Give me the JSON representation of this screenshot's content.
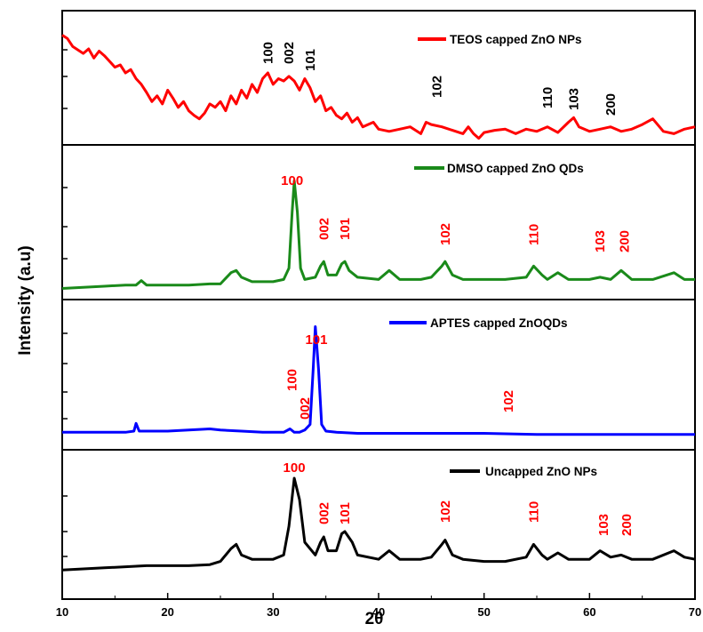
{
  "chart_data": {
    "type": "line",
    "xlabel": "2θ",
    "ylabel": "Intensity (a.u)",
    "xlim": [
      10,
      70
    ],
    "xticks": [
      10,
      20,
      30,
      40,
      50,
      60,
      70
    ],
    "colors": {
      "frame": "#000000",
      "teos": "#ff0000",
      "dmso": "#1a8a1a",
      "aptes": "#0000ff",
      "uncapped": "#000000",
      "red_label": "#ff0000"
    },
    "panels": [
      {
        "id": "teos",
        "legend": "TEOS capped ZnO NPs",
        "color": "#ff0000",
        "label_color": "#000000",
        "ylim": [
          0,
          100
        ],
        "x": [
          10,
          10.5,
          11,
          12,
          12.5,
          13,
          13.5,
          14,
          14.5,
          15,
          15.5,
          16,
          16.5,
          17,
          17.5,
          18,
          18.5,
          19,
          19.5,
          20,
          20.5,
          21,
          21.5,
          22,
          22.5,
          23,
          23.5,
          24,
          24.5,
          25,
          25.5,
          26,
          26.5,
          27,
          27.5,
          28,
          28.5,
          29,
          29.5,
          30,
          30.5,
          31,
          31.5,
          32,
          32.5,
          33,
          33.5,
          34,
          34.5,
          35,
          35.5,
          36,
          36.5,
          37,
          37.5,
          38,
          38.5,
          39,
          39.5,
          40,
          41,
          42,
          43,
          44,
          44.5,
          45,
          46,
          47,
          48,
          48.5,
          49,
          49.5,
          50,
          51,
          52,
          53,
          54,
          55,
          56,
          57,
          58,
          58.5,
          59,
          60,
          61,
          62,
          63,
          64,
          65,
          66,
          67,
          68,
          69,
          70
        ],
        "y": [
          88,
          85,
          78,
          72,
          76,
          68,
          74,
          70,
          65,
          60,
          62,
          55,
          58,
          50,
          45,
          38,
          30,
          35,
          28,
          40,
          33,
          25,
          30,
          22,
          18,
          15,
          20,
          28,
          25,
          30,
          22,
          35,
          28,
          40,
          33,
          45,
          38,
          50,
          55,
          45,
          50,
          48,
          52,
          48,
          40,
          50,
          42,
          30,
          35,
          22,
          25,
          18,
          15,
          20,
          12,
          16,
          8,
          10,
          12,
          6,
          4,
          6,
          8,
          2,
          12,
          10,
          8,
          5,
          2,
          8,
          2,
          -2,
          3,
          5,
          6,
          2,
          6,
          4,
          8,
          3,
          12,
          16,
          8,
          4,
          6,
          8,
          4,
          6,
          10,
          15,
          4,
          2,
          6,
          8
        ],
        "peaks": [
          {
            "label": "100",
            "x": 29.5
          },
          {
            "label": "002",
            "x": 31.5
          },
          {
            "label": "101",
            "x": 33.5
          },
          {
            "label": "102",
            "x": 45.5
          },
          {
            "label": "110",
            "x": 56
          },
          {
            "label": "103",
            "x": 58.5
          },
          {
            "label": "200",
            "x": 62
          }
        ]
      },
      {
        "id": "dmso",
        "legend": "DMSO capped ZnO QDs",
        "color": "#1a8a1a",
        "label_color": "#ff0000",
        "ylim": [
          0,
          100
        ],
        "x": [
          10,
          12,
          14,
          16,
          17,
          17.5,
          18,
          20,
          22,
          24,
          25,
          26,
          26.5,
          27,
          28,
          30,
          31,
          31.5,
          31.8,
          32,
          32.3,
          32.6,
          33,
          34,
          34.5,
          34.8,
          35.2,
          36,
          36.5,
          36.8,
          37.2,
          38,
          40,
          41,
          42,
          44,
          45,
          46,
          46.3,
          47,
          48,
          50,
          52,
          54,
          54.7,
          55.5,
          56,
          57,
          58,
          60,
          61,
          62,
          63,
          64,
          66,
          68,
          69,
          70
        ],
        "y": [
          2,
          3,
          4,
          5,
          5,
          9,
          5,
          5,
          5,
          6,
          6,
          16,
          18,
          12,
          8,
          8,
          10,
          20,
          70,
          98,
          70,
          20,
          10,
          12,
          22,
          26,
          14,
          14,
          24,
          26,
          18,
          12,
          10,
          18,
          10,
          10,
          12,
          22,
          26,
          14,
          10,
          10,
          10,
          12,
          22,
          14,
          10,
          16,
          10,
          10,
          12,
          10,
          18,
          10,
          10,
          16,
          10,
          10
        ],
        "peaks": [
          {
            "label": "100",
            "x": 31.8
          },
          {
            "label": "002",
            "x": 34.8
          },
          {
            "label": "101",
            "x": 36.8
          },
          {
            "label": "102",
            "x": 46.3
          },
          {
            "label": "110",
            "x": 54.7
          },
          {
            "label": "103",
            "x": 61
          },
          {
            "label": "200",
            "x": 63.3
          }
        ]
      },
      {
        "id": "aptes",
        "legend": "APTES capped ZnOQDs",
        "color": "#0000ff",
        "label_color": "#ff0000",
        "ylim": [
          0,
          100
        ],
        "x": [
          10,
          12,
          14,
          16,
          16.8,
          17,
          17.3,
          18,
          20,
          22,
          24,
          25,
          27,
          29,
          31,
          31.6,
          32,
          32.5,
          33,
          33.5,
          33.8,
          34,
          34.3,
          34.6,
          35,
          36,
          38,
          40,
          45,
          50,
          55,
          60,
          65,
          70
        ],
        "y": [
          3,
          3,
          3,
          3,
          4,
          11,
          4,
          4,
          4,
          5,
          6,
          5,
          4,
          3,
          3,
          6,
          3,
          3,
          5,
          10,
          60,
          98,
          60,
          10,
          4,
          3,
          2,
          2,
          2,
          2,
          1,
          1,
          1,
          1
        ],
        "peaks": [
          {
            "label": "100",
            "x": 31.8
          },
          {
            "label": "002",
            "x": 33
          },
          {
            "label": "101",
            "x": 34.1
          },
          {
            "label": "102",
            "x": 52.3
          }
        ]
      },
      {
        "id": "uncapped",
        "legend": "Uncapped ZnO NPs",
        "color": "#000000",
        "label_color": "#ff0000",
        "ylim": [
          0,
          100
        ],
        "x": [
          10,
          12,
          14,
          16,
          18,
          20,
          22,
          24,
          25,
          26,
          26.5,
          27,
          28,
          30,
          31,
          31.5,
          32,
          32.5,
          33,
          34,
          34.5,
          34.8,
          35.2,
          36,
          36.5,
          36.8,
          37.5,
          38,
          40,
          41,
          42,
          44,
          45,
          46,
          46.3,
          47,
          48,
          50,
          52,
          54,
          54.7,
          55.5,
          56,
          57,
          58,
          60,
          61,
          62,
          63,
          64,
          66,
          68,
          69,
          70
        ],
        "y": [
          4,
          5,
          6,
          7,
          8,
          8,
          8,
          9,
          12,
          24,
          28,
          18,
          14,
          14,
          18,
          45,
          90,
          70,
          30,
          18,
          30,
          35,
          22,
          22,
          38,
          40,
          30,
          18,
          14,
          22,
          14,
          14,
          16,
          28,
          32,
          18,
          14,
          12,
          12,
          16,
          28,
          18,
          14,
          20,
          14,
          14,
          22,
          16,
          18,
          14,
          14,
          22,
          16,
          14
        ],
        "peaks": [
          {
            "label": "100",
            "x": 32
          },
          {
            "label": "002",
            "x": 34.8
          },
          {
            "label": "101",
            "x": 36.8
          },
          {
            "label": "102",
            "x": 46.3
          },
          {
            "label": "110",
            "x": 54.7
          },
          {
            "label": "103",
            "x": 61.3
          },
          {
            "label": "200",
            "x": 63.5
          }
        ]
      }
    ]
  }
}
